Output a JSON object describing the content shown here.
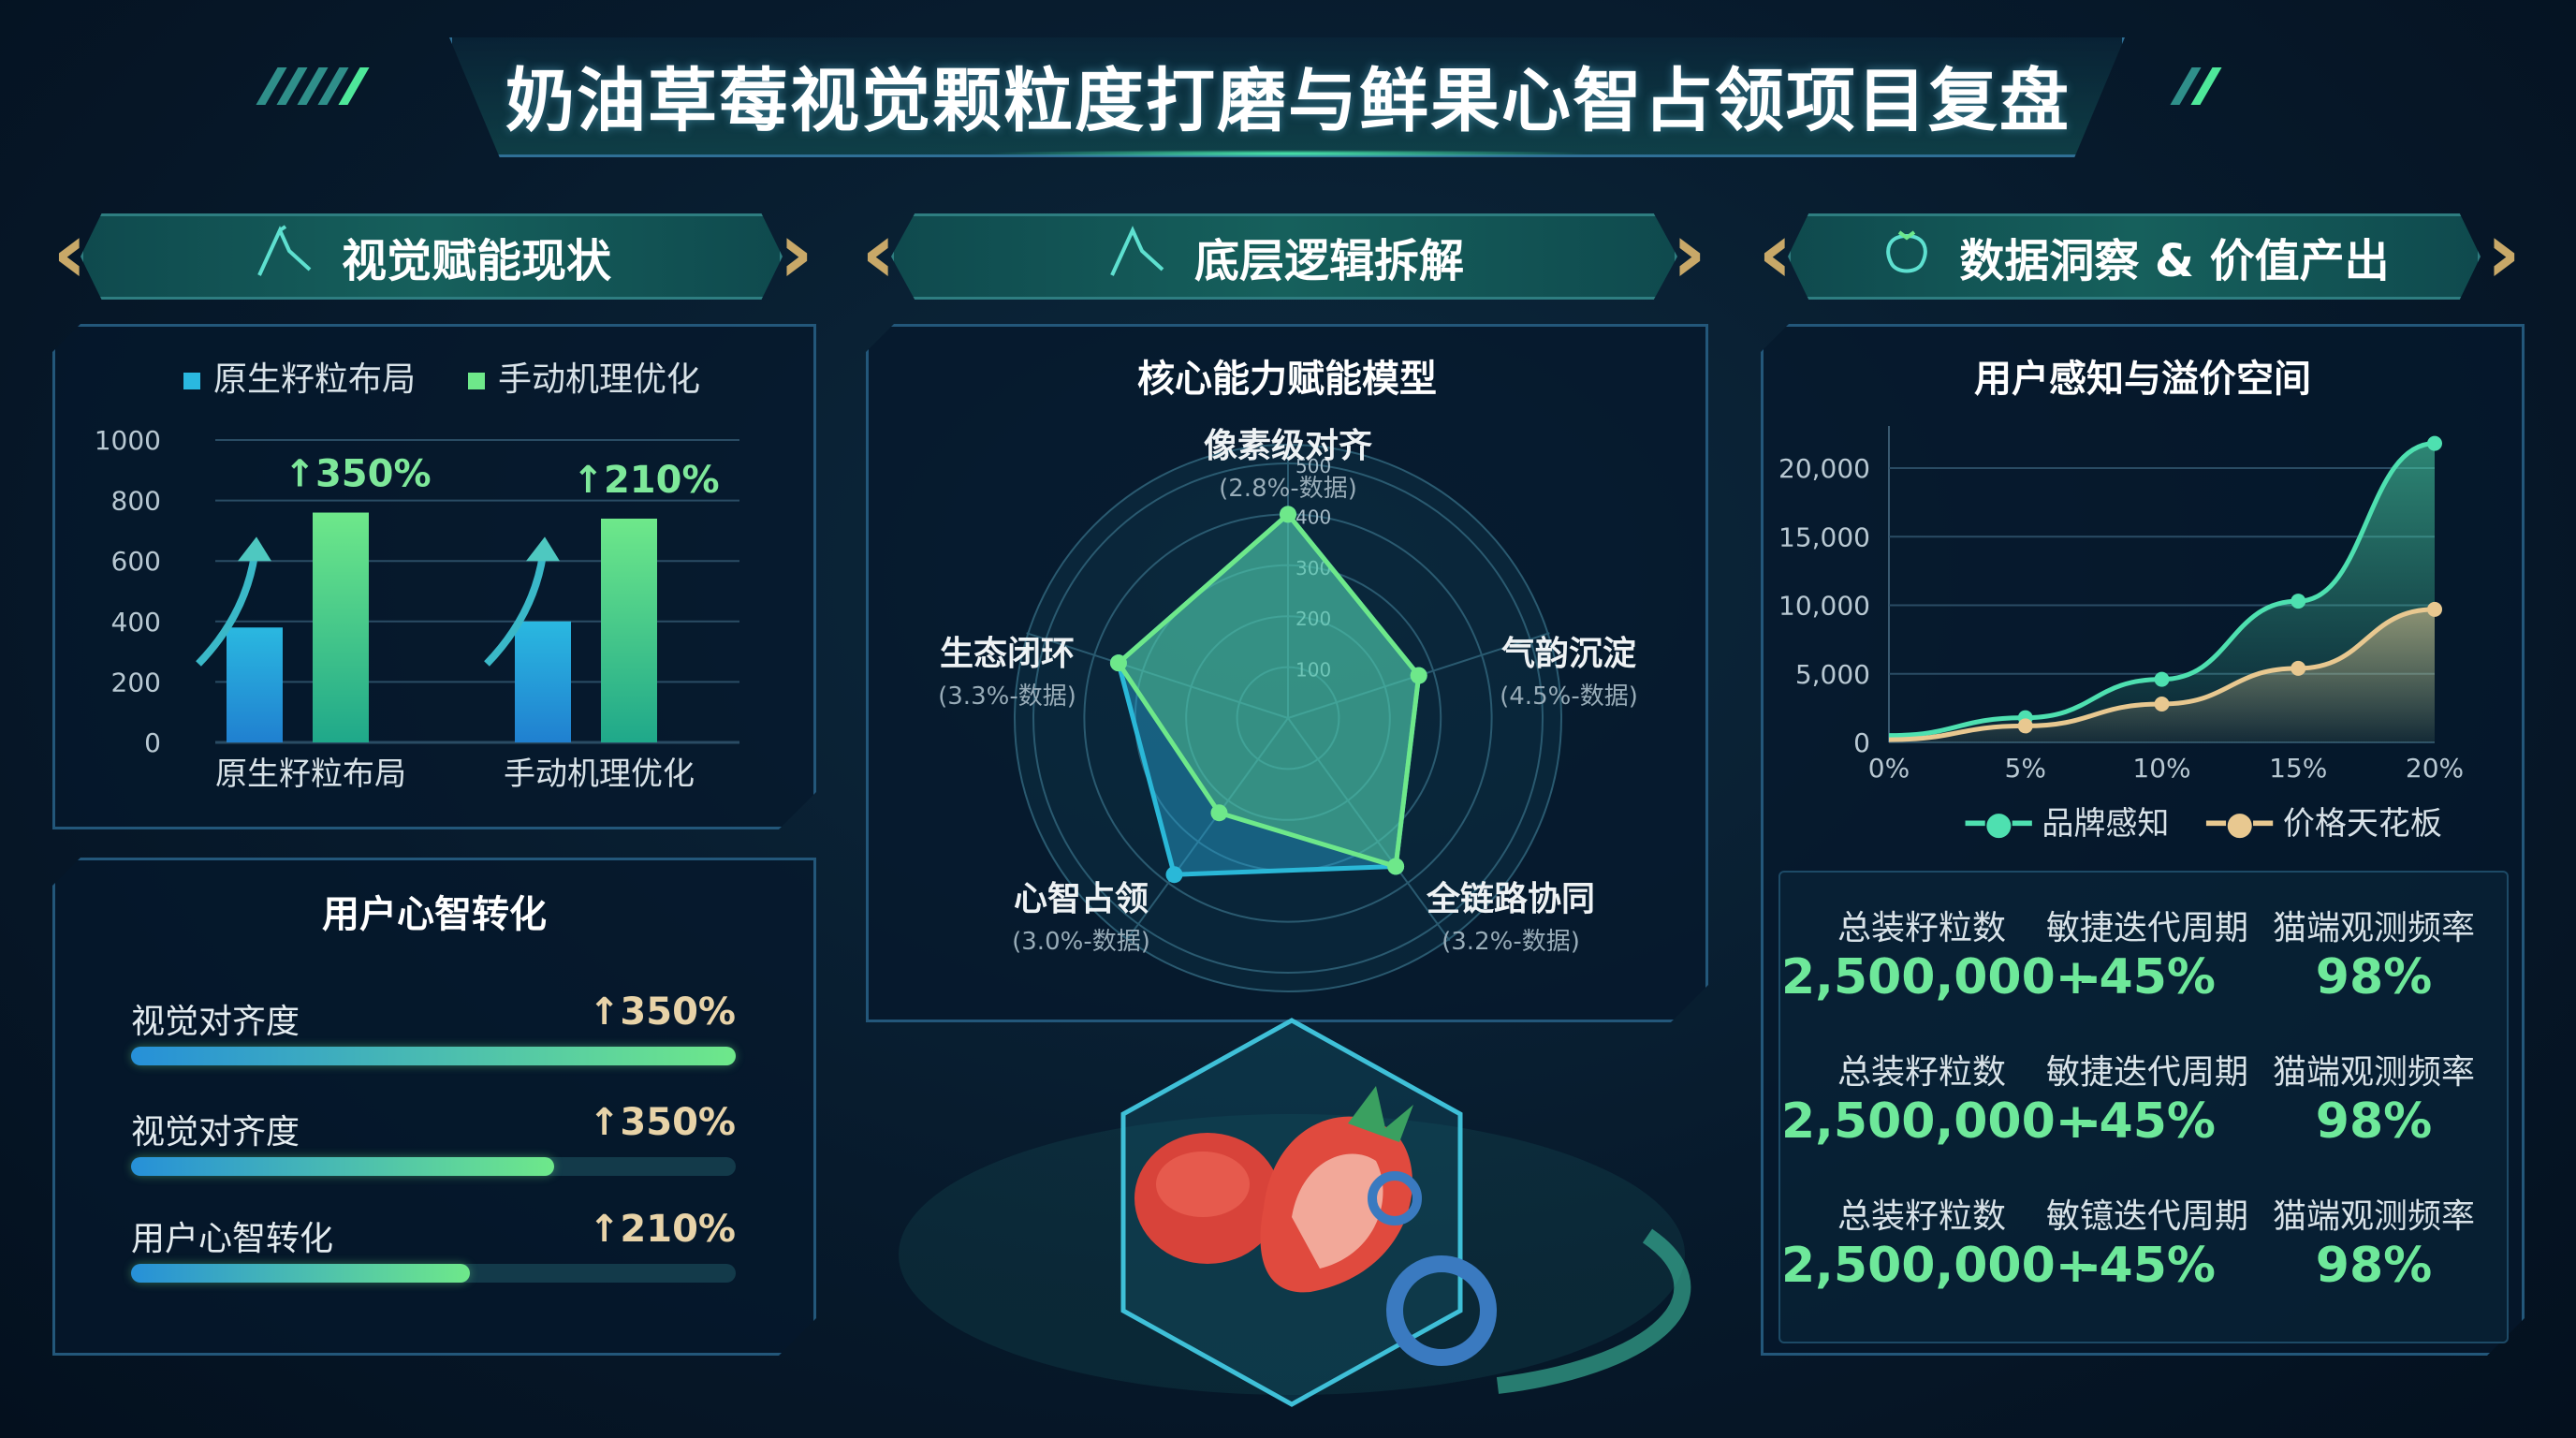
{
  "header": {
    "title": "奶油草莓视觉颗粒度打磨与鲜果心智占领项目复盘"
  },
  "sections": [
    {
      "label": "视觉赋能现状",
      "icon": "brush-icon"
    },
    {
      "label": "底层逻辑拆解",
      "icon": "brush-icon"
    },
    {
      "label": "数据洞察 & 价值产出",
      "icon": "strawberry-icon"
    }
  ],
  "colors": {
    "accent_green": "#6ee89a",
    "accent_blue": "#2aa8e0",
    "gold": "#e8d3a8",
    "background": "#071a2c"
  },
  "mind_panel": {
    "title": "用户心智转化",
    "items": [
      {
        "label": "视觉对齐度",
        "value": "↑350%",
        "progress": 1.0
      },
      {
        "label": "视觉对齐度",
        "value": "↑350%",
        "progress": 0.7
      },
      {
        "label": "用户心智转化",
        "value": "↑210%",
        "progress": 0.56
      }
    ]
  },
  "stats": {
    "rows": [
      [
        {
          "label": "总装籽粒数",
          "value": "2,500,000+"
        },
        {
          "label": "敏捷迭代周期",
          "value": "-45%"
        },
        {
          "label": "猫端观测频率",
          "value": "98%"
        }
      ],
      [
        {
          "label": "总装籽粒数",
          "value": "2,500,000+"
        },
        {
          "label": "敏捷迭代周期",
          "value": "-45%"
        },
        {
          "label": "猫端观测频率",
          "value": "98%"
        }
      ],
      [
        {
          "label": "总装籽粒数",
          "value": "2,500,000+"
        },
        {
          "label": "敏镱迭代周期",
          "value": "-45%"
        },
        {
          "label": "猫端观测频率",
          "value": "98%"
        }
      ]
    ]
  },
  "chart_data": [
    {
      "type": "bar",
      "title": "",
      "categories": [
        "原生籽粒布局",
        "手动机理优化"
      ],
      "series": [
        {
          "name": "原生籽粒布局",
          "values": [
            380,
            400
          ],
          "color": "#2ab8e0"
        },
        {
          "name": "手动机理优化",
          "values": [
            760,
            740
          ],
          "color": "#6ee88a"
        }
      ],
      "annotations": [
        "↑350%",
        "↑210%"
      ],
      "yticks": [
        "0",
        "200",
        "400",
        "600",
        "800",
        "1000"
      ],
      "ylim": [
        0,
        1000
      ],
      "grid": true,
      "legend": "top"
    },
    {
      "type": "radar",
      "title": "核心能力赋能模型",
      "axes": [
        {
          "label": "像素级对齐",
          "sub": "(2.8%-数据)"
        },
        {
          "label": "气韵沉淀",
          "sub": "(4.5%-数据)"
        },
        {
          "label": "全链路协同",
          "sub": "(3.2%-数据)"
        },
        {
          "label": "心智占领",
          "sub": "(3.0%-数据)"
        },
        {
          "label": "生态闭环",
          "sub": "(3.3%-数据)"
        }
      ],
      "rticks": [
        "100",
        "200",
        "300",
        "400",
        "500"
      ],
      "rlim": [
        0,
        500
      ],
      "series": [
        {
          "values": [
            400,
            270,
            360,
            380,
            350
          ],
          "color": "#2ab8d8"
        },
        {
          "values": [
            400,
            270,
            360,
            230,
            350
          ],
          "color": "#6ee88a"
        }
      ]
    },
    {
      "type": "area",
      "title": "用户感知与溢价空间",
      "x": [
        "0%",
        "5%",
        "10%",
        "15%",
        "20%"
      ],
      "yticks": [
        "0",
        "5,000",
        "10,000",
        "15,000",
        "20,000"
      ],
      "ylim": [
        0,
        22000
      ],
      "series": [
        {
          "name": "品牌感知",
          "values": [
            500,
            1800,
            4600,
            10300,
            21800
          ],
          "color": "#4ee0b0"
        },
        {
          "name": "价格天花板",
          "values": [
            200,
            1200,
            2800,
            5400,
            9700
          ],
          "color": "#e8c890"
        }
      ],
      "grid": true,
      "legend": "bottom"
    }
  ]
}
